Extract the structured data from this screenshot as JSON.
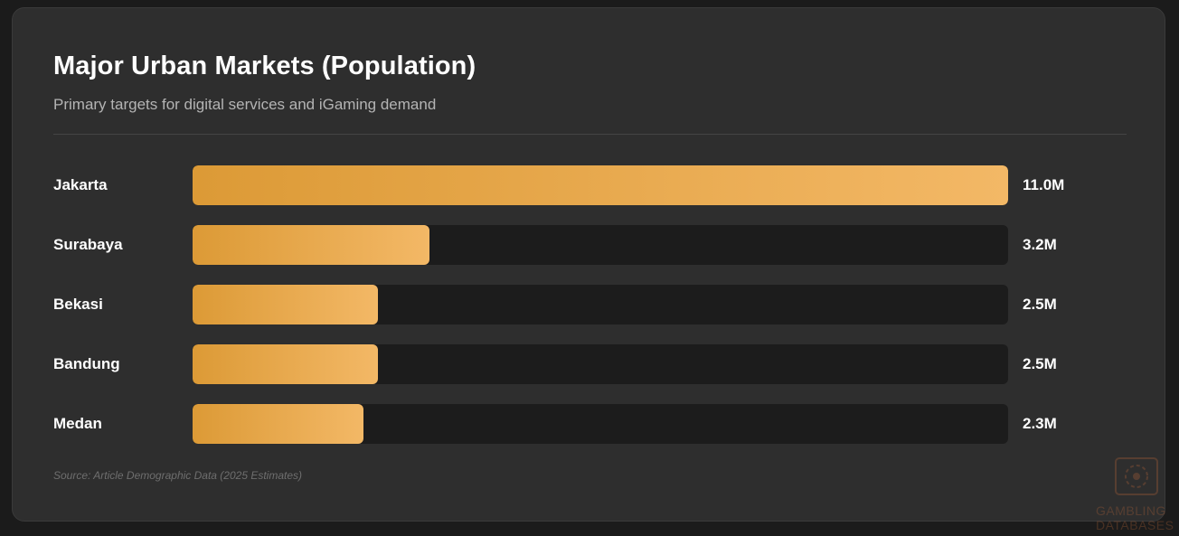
{
  "chart_data": {
    "type": "bar",
    "orientation": "horizontal",
    "title": "Major Urban Markets (Population)",
    "subtitle": "Primary targets for digital services and iGaming demand",
    "categories": [
      "Jakarta",
      "Surabaya",
      "Bekasi",
      "Bandung",
      "Medan"
    ],
    "values": [
      11.0,
      3.2,
      2.5,
      2.5,
      2.3
    ],
    "value_labels": [
      "11.0M",
      "3.2M",
      "2.5M",
      "2.5M",
      "2.3M"
    ],
    "unit": "M",
    "xlim": [
      0,
      11.0
    ],
    "grid": false,
    "source": "Source: Article Demographic Data (2025 Estimates)"
  },
  "colors": {
    "bar_start": "#dc9a36",
    "bar_end": "#f3b866",
    "track": "#1c1c1c",
    "background": "#2e2e2e"
  },
  "watermark": {
    "line1": "GAMBLING",
    "line2": "DATABASES"
  }
}
